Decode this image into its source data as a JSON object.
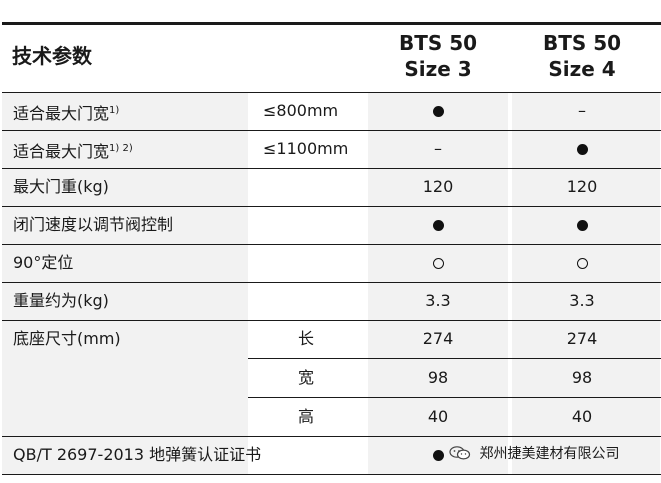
{
  "header": {
    "title": "技术参数",
    "columns": [
      {
        "line1": "BTS 50",
        "line2": "Size 3"
      },
      {
        "line1": "BTS 50",
        "line2": "Size 4"
      }
    ]
  },
  "rows": [
    {
      "label": "适合最大门宽",
      "sup": "1)",
      "unit": "≤800mm",
      "v1": "●",
      "v2": "–"
    },
    {
      "label": "适合最大门宽",
      "sup": "1) 2)",
      "unit": "≤1100mm",
      "v1": "–",
      "v2": "●"
    },
    {
      "label": "最大门重(kg)",
      "sup": "",
      "unit": "",
      "v1": "120",
      "v2": "120"
    },
    {
      "label": "闭门速度以调节阀控制",
      "sup": "",
      "unit": "",
      "v1": "●",
      "v2": "●"
    },
    {
      "label": "90°定位",
      "sup": "",
      "unit": "",
      "v1": "○",
      "v2": "○"
    },
    {
      "label": "重量约为(kg)",
      "sup": "",
      "unit": "",
      "v1": "3.3",
      "v2": "3.3"
    },
    {
      "label": "底座尺寸(mm)",
      "sup": "",
      "unit": "长",
      "v1": "274",
      "v2": "274"
    },
    {
      "label": "",
      "sup": "",
      "unit": "宽",
      "v1": "98",
      "v2": "98"
    },
    {
      "label": "",
      "sup": "",
      "unit": "高",
      "v1": "40",
      "v2": "40"
    },
    {
      "label": "QB/T 2697-2013 地弹簧认证证书",
      "sup": "",
      "unit": "",
      "v1": "●",
      "v2": ""
    }
  ],
  "watermark": {
    "icon": "wechat-icon",
    "text": "郑州捷美建材有限公司"
  },
  "colors": {
    "text": "#1a1a1a",
    "shade": "#f2f2f2",
    "rule": "#1a1a1a"
  }
}
